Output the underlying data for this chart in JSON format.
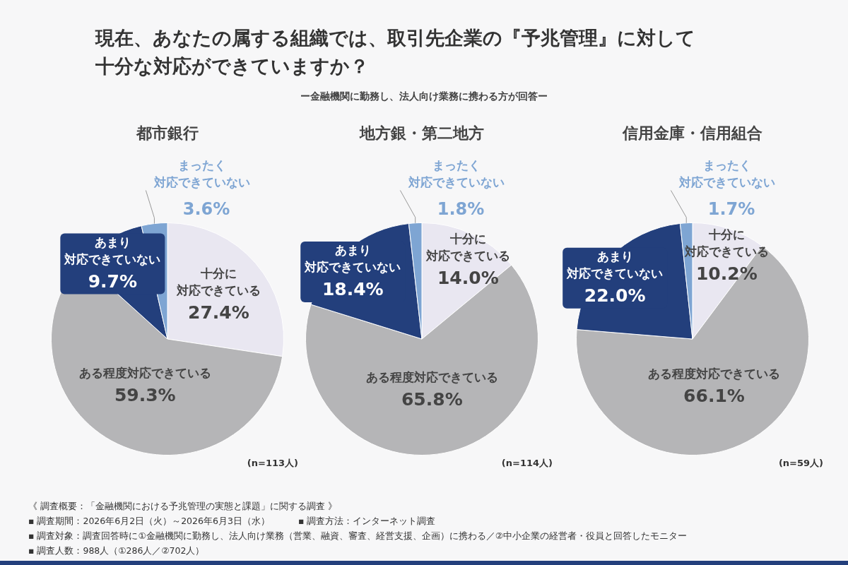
{
  "chart_data": [
    {
      "type": "other",
      "title": "現在、あなたの属する組織では、取引先企業の『予兆管理』に対して十分な対応ができていますか？",
      "subtitle": "ー金融機関に勤務し、法人向け業務に携わる方が回答ー",
      "annotations": [
        "《 調査概要：「金融機関における予兆管理の実態と課題」に関する調査 》",
        "▪ 調査期間：2026年6月2日（火）～2026年6月3日（水）",
        "▪ 調査方法：インターネット調査",
        "▪ 調査対象：調査回答時に①金融機関に勤務し、法人向け業務（営業、融資、審査、経営支援、企画）に携わる／②中小企業の経営者・役員と回答したモニター",
        "▪ 調査人数：988人（①286人／②702人）"
      ]
    },
    {
      "type": "pie",
      "title": "都市銀行",
      "categories": [
        "十分に対応できている",
        "ある程度対応できている",
        "あまり対応できていない",
        "まったく対応できていない"
      ],
      "values": [
        27.4,
        59.3,
        9.7,
        3.6
      ],
      "value_labels": [
        "27.4%",
        "59.3%",
        "9.7%",
        "3.6%"
      ],
      "colors": [
        "#e9e7f1",
        "#b5b5b7",
        "#233f7c",
        "#7ea5d3"
      ],
      "annotations": [
        "(n=113人)"
      ]
    },
    {
      "type": "pie",
      "title": "地方銀・第二地方",
      "categories": [
        "十分に対応できている",
        "ある程度対応できている",
        "あまり対応できていない",
        "まったく対応できていない"
      ],
      "values": [
        14.0,
        65.8,
        18.4,
        1.8
      ],
      "value_labels": [
        "14.0%",
        "65.8%",
        "18.4%",
        "1.8%"
      ],
      "colors": [
        "#e9e7f1",
        "#b5b5b7",
        "#233f7c",
        "#7ea5d3"
      ],
      "annotations": [
        "(n=114人)"
      ]
    },
    {
      "type": "pie",
      "title": "信用金庫・信用組合",
      "categories": [
        "十分に対応できている",
        "ある程度対応できている",
        "あまり対応できていない",
        "まったく対応できていない"
      ],
      "values": [
        10.2,
        66.1,
        22.0,
        1.7
      ],
      "value_labels": [
        "10.2%",
        "66.1%",
        "22.0%",
        "1.7%"
      ],
      "colors": [
        "#e9e7f1",
        "#b5b5b7",
        "#233f7c",
        "#7ea5d3"
      ],
      "annotations": [
        "(n=59人)"
      ]
    }
  ]
}
